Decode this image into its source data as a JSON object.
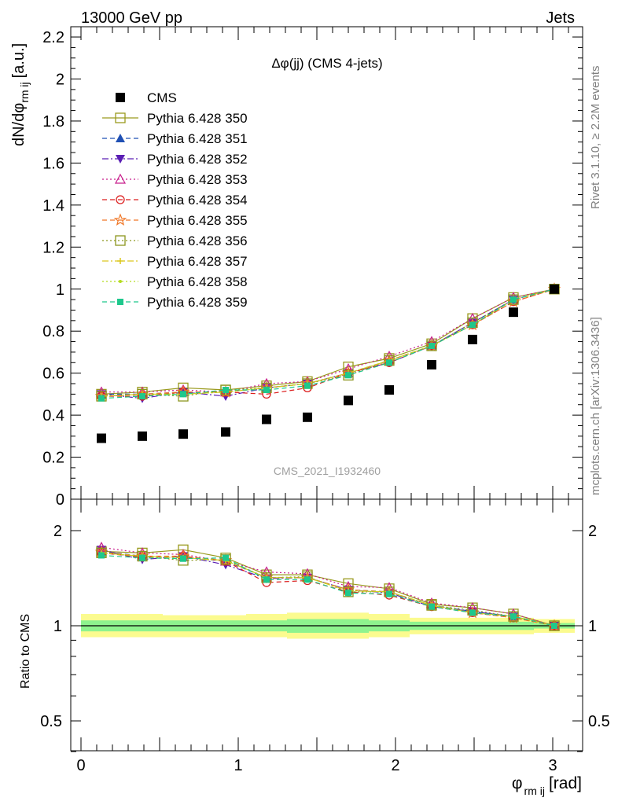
{
  "header": {
    "left": "13000 GeV pp",
    "right": "Jets"
  },
  "side_labels": {
    "top": "Rivet 3.1.10, ≥ 2.2M events",
    "bottom": "mcplots.cern.ch [arXiv:1306.3436]"
  },
  "watermark": "CMS_2021_I1932460",
  "chart_data": [
    {
      "type": "scatter",
      "title": "Δφ(jj) (CMS 4-jets)",
      "ylabel": "dN/dφ",
      "ylabel_subscript": "rm ij",
      "ylabel_unit": "[a.u.]",
      "xlim": [
        -0.1,
        3.2
      ],
      "ylim": [
        0,
        2.2
      ],
      "yticks": [
        "0",
        "0.2",
        "0.4",
        "0.6",
        "0.8",
        "1",
        "1.2",
        "1.4",
        "1.6",
        "1.8",
        "2",
        "2.2"
      ],
      "x": [
        0.13,
        0.39,
        0.65,
        0.92,
        1.18,
        1.44,
        1.7,
        1.96,
        2.23,
        2.49,
        2.75,
        3.01
      ],
      "legend_position": "top-left",
      "series": [
        {
          "name": "CMS",
          "color": "#000000",
          "marker": "square-filled",
          "line": "none",
          "values": [
            0.29,
            0.3,
            0.31,
            0.32,
            0.38,
            0.39,
            0.47,
            0.52,
            0.64,
            0.76,
            0.89,
            1.0
          ]
        },
        {
          "name": "Pythia 6.428 350",
          "color": "#9a9a1e",
          "marker": "square-open",
          "line": "solid",
          "values": [
            0.5,
            0.51,
            0.53,
            0.52,
            0.54,
            0.56,
            0.63,
            0.67,
            0.74,
            0.86,
            0.96,
            1.0
          ]
        },
        {
          "name": "Pythia 6.428 351",
          "color": "#1f50b4",
          "marker": "triangle-up-filled",
          "line": "dashed",
          "values": [
            0.5,
            0.5,
            0.51,
            0.51,
            0.53,
            0.55,
            0.6,
            0.66,
            0.73,
            0.84,
            0.95,
            1.0
          ]
        },
        {
          "name": "Pythia 6.428 352",
          "color": "#5a1eb4",
          "marker": "triangle-down-filled",
          "line": "dashdot",
          "values": [
            0.5,
            0.48,
            0.51,
            0.49,
            0.53,
            0.55,
            0.6,
            0.65,
            0.73,
            0.84,
            0.95,
            1.0
          ]
        },
        {
          "name": "Pythia 6.428 353",
          "color": "#c81e8c",
          "marker": "triangle-up-open",
          "line": "dotted",
          "values": [
            0.51,
            0.51,
            0.52,
            0.51,
            0.55,
            0.56,
            0.62,
            0.68,
            0.75,
            0.86,
            0.96,
            1.0
          ]
        },
        {
          "name": "Pythia 6.428 354",
          "color": "#dc1e1e",
          "marker": "circle-open",
          "line": "dashed",
          "values": [
            0.49,
            0.49,
            0.51,
            0.51,
            0.5,
            0.53,
            0.6,
            0.65,
            0.73,
            0.83,
            0.94,
            1.0
          ]
        },
        {
          "name": "Pythia 6.428 355",
          "color": "#f07828",
          "marker": "star-open",
          "line": "dashed",
          "values": [
            0.49,
            0.5,
            0.51,
            0.51,
            0.53,
            0.55,
            0.6,
            0.66,
            0.73,
            0.83,
            0.94,
            1.0
          ]
        },
        {
          "name": "Pythia 6.428 356",
          "color": "#8c961e",
          "marker": "square-open",
          "line": "dotted",
          "values": [
            0.49,
            0.5,
            0.49,
            0.52,
            0.53,
            0.55,
            0.59,
            0.66,
            0.73,
            0.84,
            0.95,
            1.0
          ]
        },
        {
          "name": "Pythia 6.428 357",
          "color": "#dcc81e",
          "marker": "cross",
          "line": "dashdot",
          "values": [
            0.49,
            0.5,
            0.5,
            0.51,
            0.53,
            0.55,
            0.6,
            0.66,
            0.73,
            0.83,
            0.95,
            1.0
          ]
        },
        {
          "name": "Pythia 6.428 358",
          "color": "#b4dc1e",
          "marker": "dot",
          "line": "dotted",
          "values": [
            0.49,
            0.5,
            0.5,
            0.51,
            0.53,
            0.55,
            0.6,
            0.66,
            0.73,
            0.83,
            0.95,
            1.0
          ]
        },
        {
          "name": "Pythia 6.428 359",
          "color": "#1ec88c",
          "marker": "square-filled-small",
          "line": "dashed",
          "values": [
            0.48,
            0.49,
            0.5,
            0.52,
            0.52,
            0.54,
            0.59,
            0.65,
            0.73,
            0.83,
            0.95,
            1.0
          ]
        }
      ]
    },
    {
      "type": "scatter",
      "ylabel": "Ratio to CMS",
      "xlabel": "φ",
      "xlabel_subscript": "rm ij",
      "xlabel_unit": "[rad]",
      "xticks": [
        "0",
        "1",
        "2",
        "3"
      ],
      "yticks": [
        "0.5",
        "1",
        "2"
      ],
      "ylim": [
        0.4,
        2.3
      ],
      "yscale": "log",
      "band_colors": {
        "inner": "#8ef38e",
        "outer": "#fbfb8f"
      },
      "band_edges": [
        0,
        0.26,
        0.52,
        0.78,
        1.05,
        1.31,
        1.57,
        1.83,
        2.09,
        2.36,
        2.62,
        2.88,
        3.14
      ],
      "band_inner": [
        [
          0.96,
          1.04
        ],
        [
          0.96,
          1.04
        ],
        [
          0.96,
          1.04
        ],
        [
          0.96,
          1.04
        ],
        [
          0.96,
          1.04
        ],
        [
          0.95,
          1.05
        ],
        [
          0.95,
          1.05
        ],
        [
          0.96,
          1.04
        ],
        [
          0.97,
          1.03
        ],
        [
          0.97,
          1.03
        ],
        [
          0.97,
          1.03
        ],
        [
          0.98,
          1.02
        ]
      ],
      "band_outer": [
        [
          0.92,
          1.09
        ],
        [
          0.92,
          1.09
        ],
        [
          0.92,
          1.08
        ],
        [
          0.92,
          1.08
        ],
        [
          0.92,
          1.09
        ],
        [
          0.91,
          1.1
        ],
        [
          0.91,
          1.1
        ],
        [
          0.92,
          1.09
        ],
        [
          0.94,
          1.06
        ],
        [
          0.94,
          1.06
        ],
        [
          0.94,
          1.06
        ],
        [
          0.95,
          1.05
        ]
      ],
      "series": [
        {
          "name": "Pythia 6.428 350",
          "values": [
            1.72,
            1.7,
            1.74,
            1.64,
            1.45,
            1.45,
            1.36,
            1.31,
            1.17,
            1.14,
            1.09,
            1.0
          ]
        },
        {
          "name": "Pythia 6.428 351",
          "values": [
            1.72,
            1.66,
            1.65,
            1.6,
            1.42,
            1.42,
            1.3,
            1.28,
            1.16,
            1.11,
            1.07,
            1.0
          ]
        },
        {
          "name": "Pythia 6.428 352",
          "values": [
            1.74,
            1.62,
            1.66,
            1.56,
            1.41,
            1.42,
            1.3,
            1.27,
            1.15,
            1.11,
            1.07,
            1.0
          ]
        },
        {
          "name": "Pythia 6.428 353",
          "values": [
            1.77,
            1.7,
            1.68,
            1.6,
            1.48,
            1.46,
            1.33,
            1.32,
            1.18,
            1.14,
            1.09,
            1.0
          ]
        },
        {
          "name": "Pythia 6.428 354",
          "values": [
            1.7,
            1.65,
            1.66,
            1.6,
            1.37,
            1.39,
            1.28,
            1.25,
            1.15,
            1.1,
            1.06,
            1.0
          ]
        },
        {
          "name": "Pythia 6.428 355",
          "values": [
            1.71,
            1.66,
            1.66,
            1.61,
            1.42,
            1.42,
            1.3,
            1.28,
            1.16,
            1.1,
            1.06,
            1.0
          ]
        },
        {
          "name": "Pythia 6.428 356",
          "values": [
            1.7,
            1.66,
            1.61,
            1.62,
            1.42,
            1.43,
            1.28,
            1.28,
            1.16,
            1.12,
            1.07,
            1.0
          ]
        },
        {
          "name": "Pythia 6.428 357",
          "values": [
            1.7,
            1.66,
            1.64,
            1.61,
            1.42,
            1.42,
            1.29,
            1.28,
            1.16,
            1.1,
            1.07,
            1.0
          ]
        },
        {
          "name": "Pythia 6.428 358",
          "values": [
            1.7,
            1.66,
            1.64,
            1.61,
            1.42,
            1.42,
            1.29,
            1.28,
            1.16,
            1.1,
            1.07,
            1.0
          ]
        },
        {
          "name": "Pythia 6.428 359",
          "values": [
            1.67,
            1.64,
            1.63,
            1.64,
            1.4,
            1.4,
            1.27,
            1.26,
            1.15,
            1.1,
            1.07,
            1.0
          ]
        }
      ]
    }
  ]
}
